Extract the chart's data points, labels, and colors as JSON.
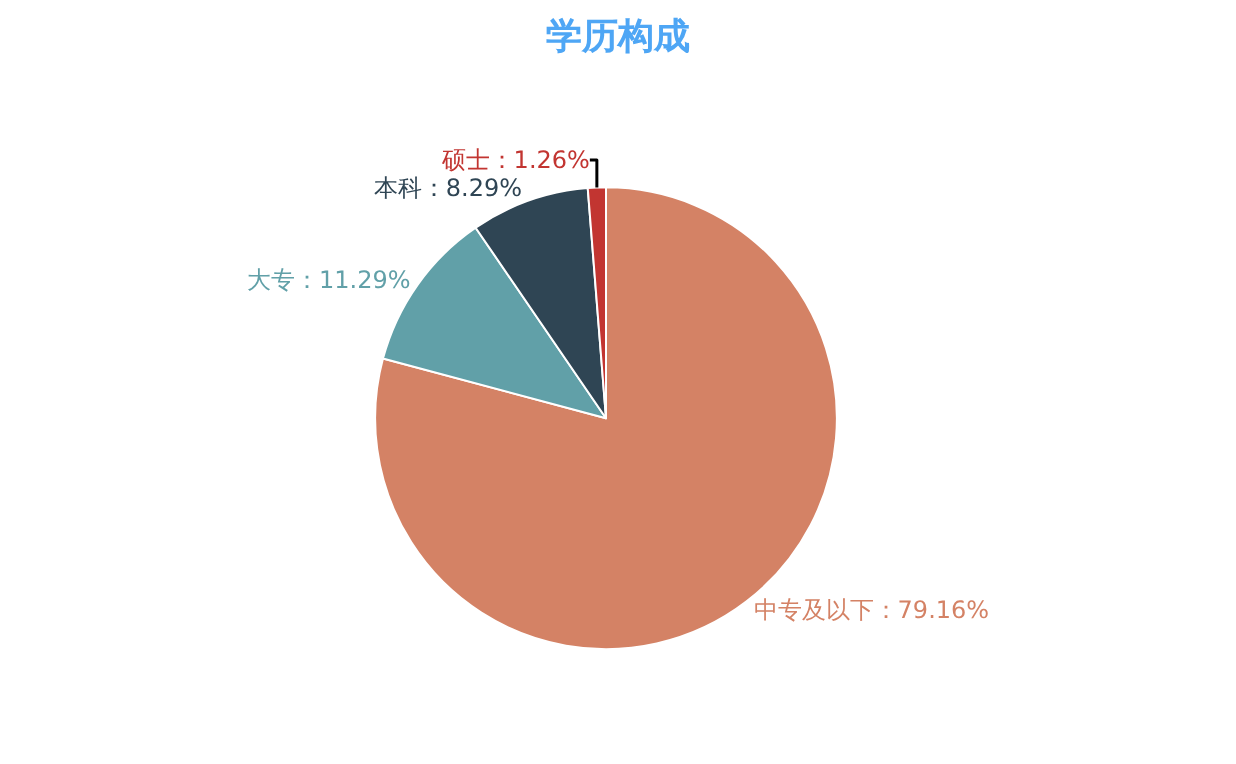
{
  "chart_data": {
    "type": "pie",
    "title": "学历构成",
    "categories": [
      "中专及以下",
      "大专",
      "本科",
      "硕士"
    ],
    "values": [
      79.16,
      11.29,
      8.29,
      1.26
    ],
    "colors": [
      "#d48265",
      "#61a0a8",
      "#2f4554",
      "#c23531"
    ],
    "value_labels": [
      "79.16%",
      "11.29%",
      "8.29%",
      "1.26%"
    ],
    "legend": false
  }
}
